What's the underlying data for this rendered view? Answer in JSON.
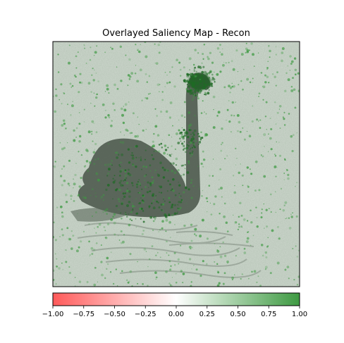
{
  "chart_data": {
    "type": "heatmap",
    "title": "Overlayed Saliency Map - Recon",
    "xlabel": "",
    "ylabel": "",
    "colorbar": {
      "range": [
        -1.0,
        1.0
      ],
      "ticks": [
        -1.0,
        -0.75,
        -0.5,
        -0.25,
        0.0,
        0.25,
        0.5,
        0.75,
        1.0
      ],
      "tick_labels": [
        "−1.00",
        "−0.75",
        "−0.50",
        "−0.25",
        "0.00",
        "0.25",
        "0.50",
        "0.75",
        "1.00"
      ],
      "colormap": [
        "#ff5a5a",
        "#ffffff",
        "#3e9a42"
      ],
      "orientation": "horizontal",
      "position": "bottom"
    },
    "image_content": "grayscale photo of a black swan on rippled water overlaid with green saliency speckles",
    "axes_visible": false
  },
  "colors": {
    "negative": "#ff5a5a",
    "neutral": "#ffffff",
    "positive": "#3e9a42",
    "swan": "#4d584d",
    "water": "#c9d2c9"
  }
}
